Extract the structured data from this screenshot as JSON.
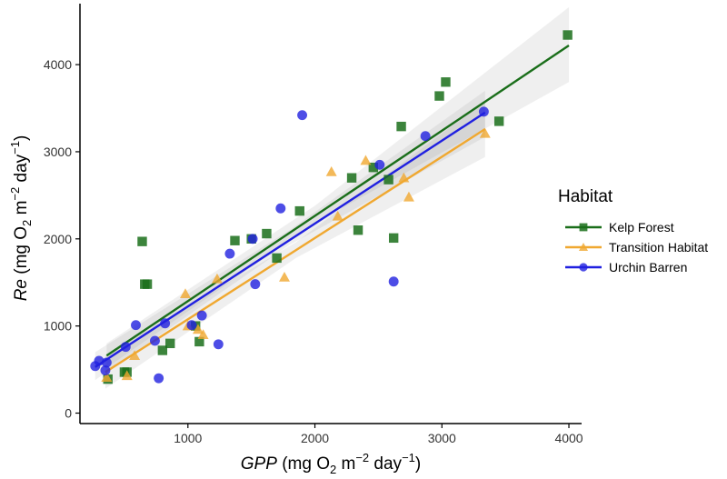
{
  "chart_data": {
    "type": "scatter",
    "title": "",
    "xlabel": {
      "var": "GPP",
      "unit": "(mg O",
      "sub": "2",
      "mid": " m",
      "sup1": "−2",
      "end": " day",
      "sup2": "−1",
      "close": ")"
    },
    "ylabel": {
      "var": "Re",
      "unit": "(mg O",
      "sub": "2",
      "mid": " m",
      "sup1": "−2",
      "end": " day",
      "sup2": "−1",
      "close": ")"
    },
    "xlim": [
      150,
      4100
    ],
    "ylim": [
      -120,
      4700
    ],
    "xticks": [
      1000,
      2000,
      3000,
      4000
    ],
    "yticks": [
      0,
      1000,
      2000,
      3000,
      4000
    ],
    "grid": false,
    "legend": {
      "title": "Habitat",
      "position": "right"
    },
    "series": [
      {
        "name": "Kelp Forest",
        "color": "#1a6e1a",
        "marker": "square",
        "fit": {
          "x0": 360,
          "y0": 660,
          "x1": 4000,
          "y1": 4220
        },
        "band": [
          [
            360,
            520,
            800
          ],
          [
            2000,
            2180,
            2380
          ],
          [
            4000,
            3800,
            4660
          ]
        ],
        "points": [
          [
            370,
            390
          ],
          [
            500,
            470
          ],
          [
            520,
            470
          ],
          [
            640,
            1970
          ],
          [
            660,
            1480
          ],
          [
            680,
            1480
          ],
          [
            800,
            720
          ],
          [
            860,
            800
          ],
          [
            1060,
            1000
          ],
          [
            1090,
            820
          ],
          [
            1370,
            1980
          ],
          [
            1500,
            2000
          ],
          [
            1620,
            2060
          ],
          [
            1700,
            1780
          ],
          [
            1880,
            2320
          ],
          [
            2290,
            2700
          ],
          [
            2340,
            2100
          ],
          [
            2460,
            2820
          ],
          [
            2580,
            2680
          ],
          [
            2620,
            2010
          ],
          [
            2680,
            3290
          ],
          [
            2980,
            3640
          ],
          [
            3030,
            3800
          ],
          [
            3450,
            3350
          ],
          [
            3990,
            4340
          ]
        ]
      },
      {
        "name": "Transition Habitat",
        "color": "#f0a830",
        "marker": "triangle",
        "fit": {
          "x0": 350,
          "y0": 470,
          "x1": 3340,
          "y1": 3260
        },
        "band": [
          [
            350,
            280,
            660
          ],
          [
            1850,
            1780,
            1960
          ],
          [
            3340,
            2940,
            3580
          ]
        ],
        "points": [
          [
            360,
            410
          ],
          [
            520,
            430
          ],
          [
            580,
            660
          ],
          [
            980,
            1370
          ],
          [
            1000,
            1000
          ],
          [
            1080,
            960
          ],
          [
            1120,
            900
          ],
          [
            1230,
            1540
          ],
          [
            1760,
            1560
          ],
          [
            2130,
            2770
          ],
          [
            2180,
            2260
          ],
          [
            2400,
            2900
          ],
          [
            2700,
            2700
          ],
          [
            2740,
            2480
          ],
          [
            3340,
            3210
          ]
        ]
      },
      {
        "name": "Urchin Barren",
        "color": "#2020e0",
        "marker": "circle",
        "fit": {
          "x0": 270,
          "y0": 530,
          "x1": 3340,
          "y1": 3450
        },
        "band": [
          [
            270,
            380,
            700
          ],
          [
            1800,
            1930,
            2100
          ],
          [
            3340,
            3170,
            3700
          ]
        ],
        "points": [
          [
            270,
            540
          ],
          [
            300,
            600
          ],
          [
            350,
            490
          ],
          [
            360,
            580
          ],
          [
            510,
            760
          ],
          [
            590,
            1010
          ],
          [
            740,
            830
          ],
          [
            770,
            400
          ],
          [
            820,
            1030
          ],
          [
            1030,
            1010
          ],
          [
            1110,
            1120
          ],
          [
            1240,
            790
          ],
          [
            1330,
            1830
          ],
          [
            1510,
            2000
          ],
          [
            1530,
            1480
          ],
          [
            1730,
            2350
          ],
          [
            1900,
            3420
          ],
          [
            2510,
            2850
          ],
          [
            2620,
            1510
          ],
          [
            2870,
            3180
          ],
          [
            3330,
            3460
          ]
        ]
      }
    ]
  }
}
